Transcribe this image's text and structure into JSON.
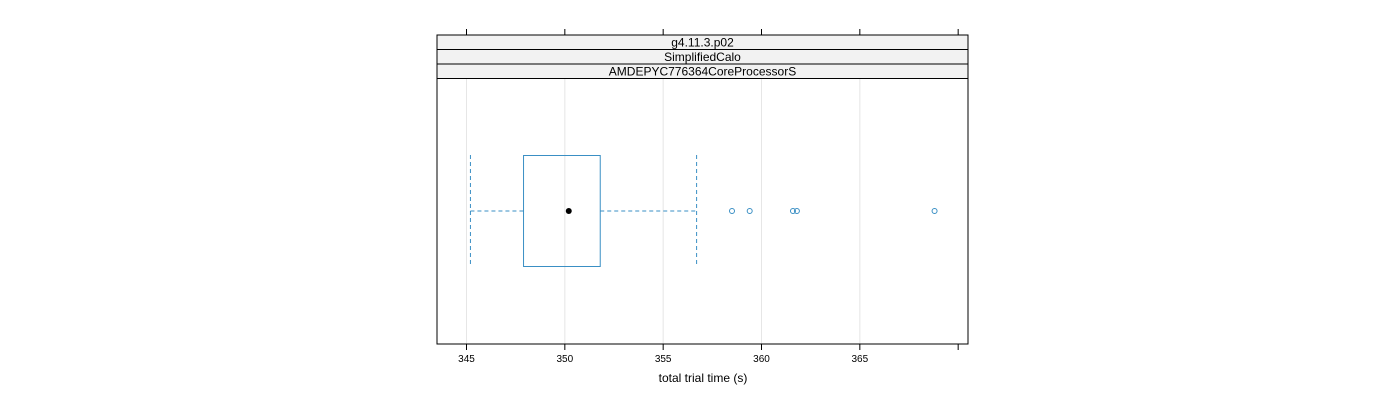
{
  "chart_data": {
    "type": "boxplot",
    "panel_strips": [
      "g4.11.3.p02",
      "SimplifiedCalo",
      "AMDEPYC776364CoreProcessorS"
    ],
    "xlabel": "total trial time (s)",
    "ylabel": "",
    "xlim": [
      343.5,
      370.5
    ],
    "x_ticks": [
      345,
      350,
      355,
      360,
      365
    ],
    "x_tick_labels": [
      "345",
      "350",
      "355",
      "360",
      "365"
    ],
    "grid": true,
    "box": {
      "whisker_low": 345.2,
      "q1": 347.9,
      "median": 350.2,
      "q3": 351.8,
      "whisker_high": 356.7
    },
    "outliers": [
      358.5,
      359.4,
      361.6,
      361.8,
      368.8
    ],
    "colors": {
      "box": "#3a8fc4",
      "median_dot": "#000000",
      "strip_bg": "#f2f2f2",
      "grid": "#e6e6e6"
    }
  }
}
